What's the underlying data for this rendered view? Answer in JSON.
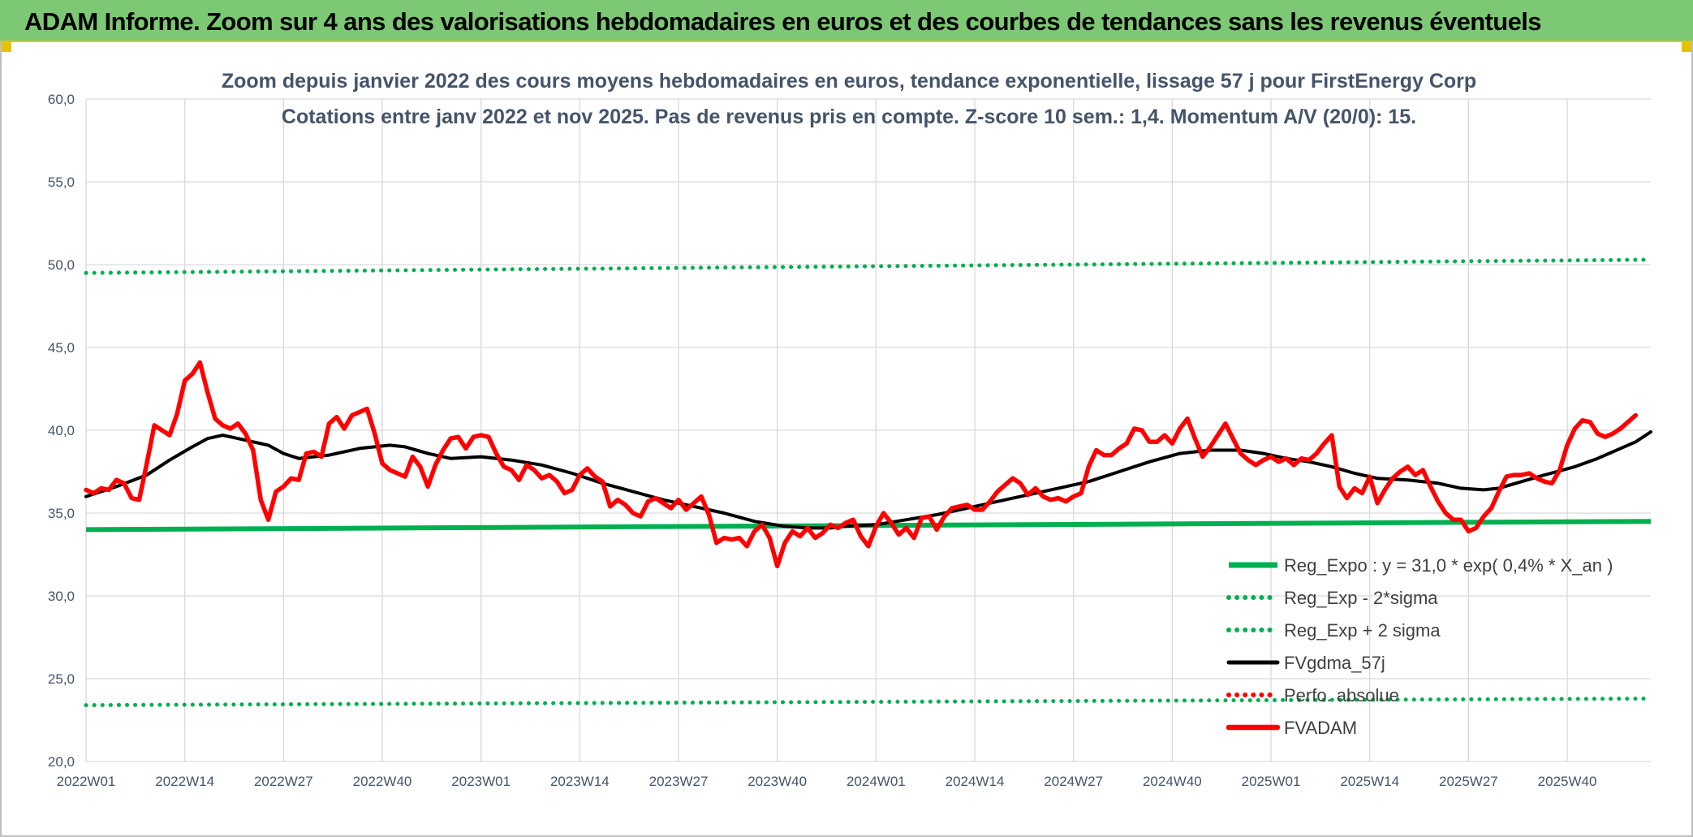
{
  "header": {
    "title": "ADAM Informe. Zoom sur 4 ans des valorisations hebdomadaires en euros et des courbes de tendances sans les revenus éventuels"
  },
  "colors": {
    "header_bg": "#7dc874",
    "reg_expo": "#00b050",
    "fvadam": "#ff0000",
    "fvgdma": "#000000",
    "perfo": "#ff0000",
    "grid": "#d9d9d9",
    "text": "#44546a"
  },
  "chart_data": {
    "type": "line",
    "title": "Zoom depuis janvier 2022 des cours moyens hebdomadaires en euros, tendance exponentielle, lissage 57 j pour FirstEnergy Corp",
    "subtitle": "Cotations entre janv 2022 et nov 2025. Pas de revenus pris en compte. Z-score 10 sem.: 1,4. Momentum A/V (20/0): 15.",
    "xlabel": "",
    "ylabel": "",
    "ylim": [
      20,
      60
    ],
    "y_ticks": [
      "20,0",
      "25,0",
      "30,0",
      "35,0",
      "40,0",
      "45,0",
      "50,0",
      "55,0",
      "60,0"
    ],
    "x_tick_labels": [
      "2022W01",
      "2022W14",
      "2022W27",
      "2022W40",
      "2023W01",
      "2023W14",
      "2023W27",
      "2023W40",
      "2024W01",
      "2024W14",
      "2024W27",
      "2024W40",
      "2025W01",
      "2025W14",
      "2025W27",
      "2025W40"
    ],
    "x_tick_week_index": [
      0,
      13,
      26,
      39,
      52,
      65,
      78,
      91,
      104,
      117,
      130,
      143,
      156,
      169,
      182,
      195
    ],
    "n_weeks": 207,
    "grid": true,
    "legend_position": "bottom-right",
    "series": [
      {
        "name": "Reg_Expo : y = 31,0 * exp( 0,4% *  X_an )",
        "style": "solid-thick",
        "color": "#00b050",
        "points": [
          [
            0,
            34.0
          ],
          [
            206,
            34.5
          ]
        ]
      },
      {
        "name": "Reg_Exp - 2*sigma",
        "style": "dotted",
        "color": "#00b050",
        "points": [
          [
            0,
            23.4
          ],
          [
            206,
            23.8
          ]
        ]
      },
      {
        "name": "Reg_Exp + 2 sigma",
        "style": "dotted",
        "color": "#00b050",
        "points": [
          [
            0,
            49.5
          ],
          [
            206,
            50.3
          ]
        ]
      },
      {
        "name": "FVgdma_57j",
        "style": "solid",
        "color": "#000000",
        "points": [
          [
            0,
            36.0
          ],
          [
            4,
            36.6
          ],
          [
            8,
            37.3
          ],
          [
            11,
            38.2
          ],
          [
            14,
            39.0
          ],
          [
            16,
            39.5
          ],
          [
            18,
            39.7
          ],
          [
            21,
            39.4
          ],
          [
            24,
            39.1
          ],
          [
            26,
            38.6
          ],
          [
            28,
            38.3
          ],
          [
            32,
            38.5
          ],
          [
            36,
            38.9
          ],
          [
            40,
            39.1
          ],
          [
            42,
            39.0
          ],
          [
            45,
            38.6
          ],
          [
            48,
            38.3
          ],
          [
            52,
            38.4
          ],
          [
            56,
            38.2
          ],
          [
            60,
            37.9
          ],
          [
            64,
            37.4
          ],
          [
            68,
            36.8
          ],
          [
            72,
            36.3
          ],
          [
            76,
            35.8
          ],
          [
            80,
            35.4
          ],
          [
            84,
            35.0
          ],
          [
            88,
            34.5
          ],
          [
            92,
            34.2
          ],
          [
            95,
            34.1
          ],
          [
            98,
            34.1
          ],
          [
            100,
            34.2
          ],
          [
            104,
            34.3
          ],
          [
            108,
            34.6
          ],
          [
            112,
            34.9
          ],
          [
            116,
            35.3
          ],
          [
            120,
            35.7
          ],
          [
            124,
            36.1
          ],
          [
            128,
            36.5
          ],
          [
            132,
            36.9
          ],
          [
            136,
            37.5
          ],
          [
            140,
            38.1
          ],
          [
            144,
            38.6
          ],
          [
            148,
            38.8
          ],
          [
            152,
            38.8
          ],
          [
            155,
            38.6
          ],
          [
            158,
            38.3
          ],
          [
            161,
            38.1
          ],
          [
            164,
            37.8
          ],
          [
            167,
            37.4
          ],
          [
            170,
            37.1
          ],
          [
            174,
            37.0
          ],
          [
            178,
            36.8
          ],
          [
            181,
            36.5
          ],
          [
            184,
            36.4
          ],
          [
            186,
            36.5
          ],
          [
            189,
            36.9
          ],
          [
            192,
            37.3
          ],
          [
            196,
            37.8
          ],
          [
            199,
            38.3
          ],
          [
            202,
            38.9
          ],
          [
            204,
            39.3
          ],
          [
            206,
            39.9
          ]
        ]
      },
      {
        "name": "Perfo. absolue",
        "style": "dotted",
        "color": "#ff0000",
        "points": []
      },
      {
        "name": "FVADAM",
        "style": "solid-thick",
        "color": "#ff0000",
        "points": [
          [
            0,
            36.4
          ],
          [
            1,
            36.2
          ],
          [
            2,
            36.5
          ],
          [
            3,
            36.4
          ],
          [
            4,
            37.0
          ],
          [
            5,
            36.8
          ],
          [
            6,
            35.9
          ],
          [
            7,
            35.8
          ],
          [
            8,
            38.0
          ],
          [
            9,
            40.3
          ],
          [
            10,
            40.0
          ],
          [
            11,
            39.7
          ],
          [
            12,
            41.0
          ],
          [
            13,
            43.0
          ],
          [
            14,
            43.4
          ],
          [
            15,
            44.1
          ],
          [
            16,
            42.3
          ],
          [
            17,
            40.7
          ],
          [
            18,
            40.3
          ],
          [
            19,
            40.1
          ],
          [
            20,
            40.4
          ],
          [
            21,
            39.8
          ],
          [
            22,
            38.8
          ],
          [
            23,
            35.8
          ],
          [
            24,
            34.6
          ],
          [
            25,
            36.3
          ],
          [
            26,
            36.6
          ],
          [
            27,
            37.1
          ],
          [
            28,
            37.0
          ],
          [
            29,
            38.6
          ],
          [
            30,
            38.7
          ],
          [
            31,
            38.4
          ],
          [
            32,
            40.4
          ],
          [
            33,
            40.8
          ],
          [
            34,
            40.1
          ],
          [
            35,
            40.9
          ],
          [
            36,
            41.1
          ],
          [
            37,
            41.3
          ],
          [
            38,
            39.8
          ],
          [
            39,
            38.0
          ],
          [
            40,
            37.6
          ],
          [
            41,
            37.4
          ],
          [
            42,
            37.2
          ],
          [
            43,
            38.4
          ],
          [
            44,
            37.8
          ],
          [
            45,
            36.6
          ],
          [
            46,
            37.9
          ],
          [
            47,
            38.8
          ],
          [
            48,
            39.5
          ],
          [
            49,
            39.6
          ],
          [
            50,
            38.9
          ],
          [
            51,
            39.6
          ],
          [
            52,
            39.7
          ],
          [
            53,
            39.6
          ],
          [
            54,
            38.6
          ],
          [
            55,
            37.8
          ],
          [
            56,
            37.6
          ],
          [
            57,
            37.0
          ],
          [
            58,
            37.9
          ],
          [
            59,
            37.6
          ],
          [
            60,
            37.1
          ],
          [
            61,
            37.3
          ],
          [
            62,
            36.9
          ],
          [
            63,
            36.2
          ],
          [
            64,
            36.4
          ],
          [
            65,
            37.3
          ],
          [
            66,
            37.7
          ],
          [
            67,
            37.2
          ],
          [
            68,
            36.9
          ],
          [
            69,
            35.4
          ],
          [
            70,
            35.8
          ],
          [
            71,
            35.5
          ],
          [
            72,
            35.0
          ],
          [
            73,
            34.8
          ],
          [
            74,
            35.7
          ],
          [
            75,
            35.9
          ],
          [
            76,
            35.6
          ],
          [
            77,
            35.3
          ],
          [
            78,
            35.8
          ],
          [
            79,
            35.2
          ],
          [
            80,
            35.6
          ],
          [
            81,
            36.0
          ],
          [
            82,
            34.9
          ],
          [
            83,
            33.2
          ],
          [
            84,
            33.5
          ],
          [
            85,
            33.4
          ],
          [
            86,
            33.5
          ],
          [
            87,
            33.0
          ],
          [
            88,
            33.9
          ],
          [
            89,
            34.3
          ],
          [
            90,
            33.5
          ],
          [
            91,
            31.8
          ],
          [
            92,
            33.2
          ],
          [
            93,
            33.9
          ],
          [
            94,
            33.6
          ],
          [
            95,
            34.1
          ],
          [
            96,
            33.5
          ],
          [
            97,
            33.8
          ],
          [
            98,
            34.3
          ],
          [
            99,
            34.1
          ],
          [
            100,
            34.4
          ],
          [
            101,
            34.6
          ],
          [
            102,
            33.6
          ],
          [
            103,
            33.0
          ],
          [
            104,
            34.2
          ],
          [
            105,
            35.0
          ],
          [
            106,
            34.4
          ],
          [
            107,
            33.7
          ],
          [
            108,
            34.1
          ],
          [
            109,
            33.5
          ],
          [
            110,
            34.7
          ],
          [
            111,
            34.8
          ],
          [
            112,
            34.0
          ],
          [
            113,
            34.8
          ],
          [
            114,
            35.3
          ],
          [
            115,
            35.4
          ],
          [
            116,
            35.5
          ],
          [
            117,
            35.2
          ],
          [
            118,
            35.2
          ],
          [
            119,
            35.7
          ],
          [
            120,
            36.3
          ],
          [
            121,
            36.7
          ],
          [
            122,
            37.1
          ],
          [
            123,
            36.8
          ],
          [
            124,
            36.1
          ],
          [
            125,
            36.5
          ],
          [
            126,
            36.0
          ],
          [
            127,
            35.8
          ],
          [
            128,
            35.9
          ],
          [
            129,
            35.7
          ],
          [
            130,
            36.0
          ],
          [
            131,
            36.2
          ],
          [
            132,
            37.8
          ],
          [
            133,
            38.8
          ],
          [
            134,
            38.5
          ],
          [
            135,
            38.5
          ],
          [
            136,
            38.9
          ],
          [
            137,
            39.2
          ],
          [
            138,
            40.1
          ],
          [
            139,
            40.0
          ],
          [
            140,
            39.3
          ],
          [
            141,
            39.3
          ],
          [
            142,
            39.7
          ],
          [
            143,
            39.2
          ],
          [
            144,
            40.1
          ],
          [
            145,
            40.7
          ],
          [
            146,
            39.5
          ],
          [
            147,
            38.4
          ],
          [
            148,
            39.0
          ],
          [
            149,
            39.7
          ],
          [
            150,
            40.4
          ],
          [
            151,
            39.5
          ],
          [
            152,
            38.6
          ],
          [
            153,
            38.2
          ],
          [
            154,
            37.9
          ],
          [
            155,
            38.2
          ],
          [
            156,
            38.4
          ],
          [
            157,
            38.1
          ],
          [
            158,
            38.3
          ],
          [
            159,
            37.9
          ],
          [
            160,
            38.3
          ],
          [
            161,
            38.2
          ],
          [
            162,
            38.6
          ],
          [
            163,
            39.2
          ],
          [
            164,
            39.7
          ],
          [
            165,
            36.6
          ],
          [
            166,
            35.9
          ],
          [
            167,
            36.5
          ],
          [
            168,
            36.2
          ],
          [
            169,
            37.2
          ],
          [
            170,
            35.6
          ],
          [
            171,
            36.4
          ],
          [
            172,
            37.1
          ],
          [
            173,
            37.5
          ],
          [
            174,
            37.8
          ],
          [
            175,
            37.3
          ],
          [
            176,
            37.6
          ],
          [
            177,
            36.6
          ],
          [
            178,
            35.7
          ],
          [
            179,
            35.0
          ],
          [
            180,
            34.6
          ],
          [
            181,
            34.6
          ],
          [
            182,
            33.9
          ],
          [
            183,
            34.1
          ],
          [
            184,
            34.8
          ],
          [
            185,
            35.3
          ],
          [
            186,
            36.3
          ],
          [
            187,
            37.2
          ],
          [
            188,
            37.3
          ],
          [
            189,
            37.3
          ],
          [
            190,
            37.4
          ],
          [
            191,
            37.1
          ],
          [
            192,
            36.9
          ],
          [
            193,
            36.8
          ],
          [
            194,
            37.6
          ],
          [
            195,
            39.1
          ],
          [
            196,
            40.1
          ],
          [
            197,
            40.6
          ],
          [
            198,
            40.5
          ],
          [
            199,
            39.8
          ],
          [
            200,
            39.6
          ],
          [
            201,
            39.8
          ],
          [
            202,
            40.1
          ],
          [
            203,
            40.5
          ],
          [
            204,
            40.9
          ]
        ]
      }
    ]
  }
}
